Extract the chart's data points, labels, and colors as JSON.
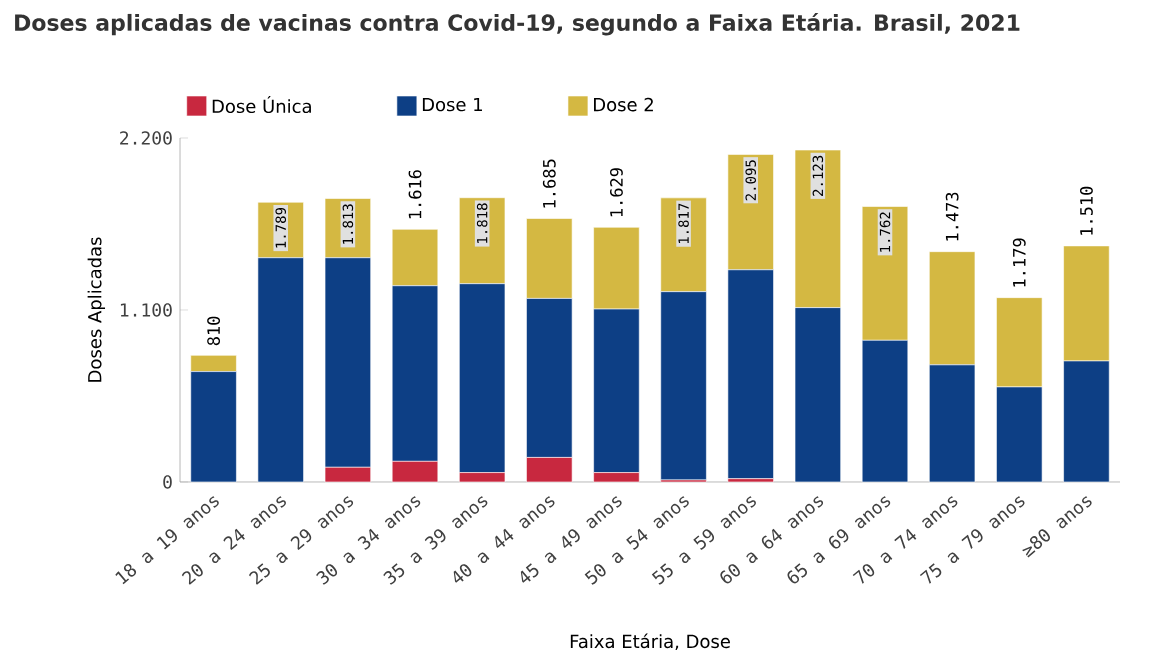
{
  "chart_data": {
    "type": "bar",
    "stacked": true,
    "title": "Doses aplicadas de vacinas contra Covid-19, segundo a Faixa Etária. Brasil, 2021",
    "xlabel": "Faixa Etária, Dose",
    "ylabel": "Doses Aplicadas",
    "categories": [
      "18 a 19 anos",
      "20 a 24 anos",
      "25 a 29 anos",
      "30 a 34 anos",
      "35 a 39 anos",
      "40 a 44 anos",
      "45 a 49 anos",
      "50 a 54 anos",
      "55 a 59 anos",
      "60 a 64 anos",
      "65 a 69 anos",
      "70 a 74 anos",
      "75 a 79 anos",
      "≥80 anos"
    ],
    "series": [
      {
        "name": "Dose Única",
        "color": "#c8283f",
        "values": [
          0,
          0,
          94,
          132,
          60,
          157,
          60,
          13,
          21,
          0,
          0,
          0,
          0,
          0
        ]
      },
      {
        "name": "Dose 1",
        "color": "#0d3f85",
        "values": [
          706,
          1434,
          1340,
          1123,
          1208,
          1017,
          1046,
          1204,
          1336,
          1115,
          906,
          749,
          608,
          774
        ]
      },
      {
        "name": "Dose 2",
        "color": "#d4b842",
        "values": [
          104,
          355,
          379,
          361,
          550,
          511,
          523,
          600,
          738,
          1008,
          856,
          724,
          571,
          736
        ]
      }
    ],
    "totals": [
      "810",
      "1.789",
      "1.813",
      "1.616",
      "1.818",
      "1.685",
      "1.629",
      "1.817",
      "2.095",
      "2.123",
      "1.762",
      "1.473",
      "1.179",
      "1.510"
    ],
    "ylim": [
      0,
      2200
    ],
    "yticks": [
      {
        "value": 0,
        "label": "0"
      },
      {
        "value": 1100,
        "label": "1.100"
      },
      {
        "value": 2200,
        "label": "2.200"
      }
    ],
    "grid": false,
    "legend": "top left"
  }
}
